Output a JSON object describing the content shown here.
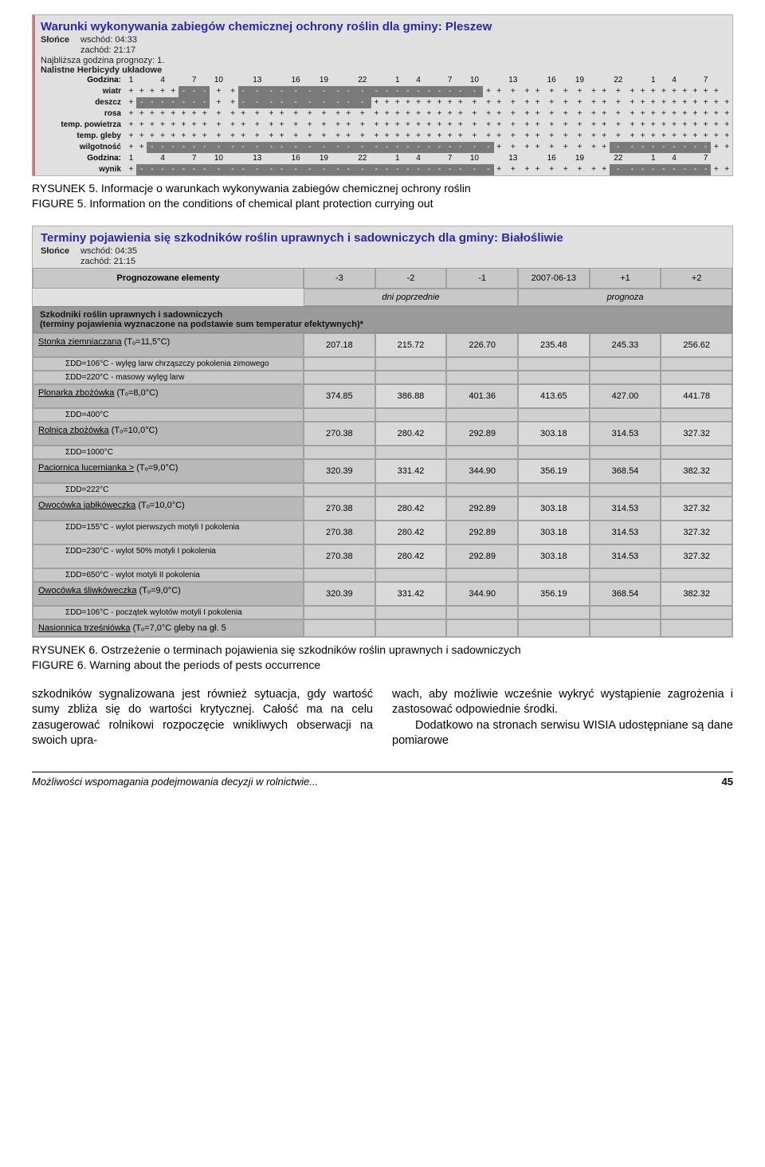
{
  "panel1": {
    "title": "Warunki wykonywania zabiegów chemicznej ochrony roślin dla gminy: Pleszew",
    "sun_label": "Słońce",
    "sunrise": "wschód: 04:33",
    "sunset": "zachód: 21:17",
    "nearest": "Najbliższa godzina prognozy: 1.",
    "herb_line": "Nalistne Herbicydy układowe",
    "hour_label": "Godzina:",
    "hours": [
      "1",
      "4",
      "7",
      "10",
      "13",
      "16",
      "19",
      "22",
      "1",
      "4",
      "7",
      "10",
      "13",
      "16",
      "19",
      "22",
      "1",
      "4",
      "7"
    ],
    "rows": [
      {
        "label": "wiatr",
        "cells": "+ + + + + - - - + + - - - - - - - - - - - - - - - - - - - - + + + + + + + + + + + + + + + + + + + +"
      },
      {
        "label": "deszcz",
        "cells": "+ - - - - - - - + + - - - - - - - - - - + + + + + + + + + + + + + + + + + + + + + + + + + + + + + + +"
      },
      {
        "label": "rosa",
        "cells": "+ + + + + + + + + + + + + + + + + + + + + + + + + + + + + + + + + + + + + + + + + + + + + + + + + + +"
      },
      {
        "label": "temp. powietrza",
        "cells": "+ + + + + + + + + + + + + + + + + + + + + + + + + + + + + + + + + + + + + + + + + + + + + + + + + + +"
      },
      {
        "label": "temp. gleby",
        "cells": "+ + + + + + + + + + + + + + + + + + + + + + + + + + + + + + + + + + + + + + + + + + + + + + + + + + +"
      },
      {
        "label": "wilgotność",
        "cells": "+ + - - - - - - - - - - - - - - - - - - - - - - - - - - - - - + + + + + + + + + - - - - - - - - - + +"
      }
    ],
    "result": {
      "label": "wynik",
      "cells": "+ - - - - - - - - - - - - - - - - - - - - - - - - - - - - - - + + + + + + + + + - - - - - - - - - + +"
    }
  },
  "caption1": {
    "pl": "RYSUNEK 5. Informacje o warunkach wykonywania zabiegów chemicznej ochrony roślin",
    "en": "FIGURE 5. Information on the conditions of chemical plant protection currying out"
  },
  "panel2": {
    "title": "Terminy pojawienia się szkodników roślin uprawnych i sadowniczych dla gminy: Białośliwie",
    "sun_label": "Słońce",
    "sunrise": "wschód: 04:35",
    "sunset": "zachód: 21:15",
    "head_label": "Prognozowane elementy",
    "head_cols": [
      "-3",
      "-2",
      "-1",
      "2007-06-13",
      "+1",
      "+2"
    ],
    "sub_prev": "dni poprzednie",
    "sub_next": "prognoza",
    "section": "Szkodniki roślin uprawnych i sadowniczych\n(terminy pojawienia wyznaczone na podstawie sum temperatur efektywnych)*",
    "pests": [
      {
        "name": "Stonka ziemniaczana",
        "params": "(Tₒ=11,5°C)",
        "extras": [
          "ΣDD=106°C - wylęg larw chrząszczy pokolenia zimowego",
          "ΣDD=220°C - masowy wylęg larw"
        ],
        "rows": [
          [
            207.18,
            215.72,
            226.7,
            235.48,
            245.33,
            256.62
          ]
        ]
      },
      {
        "name": "Plonarka zbożówka",
        "params": "(Tₒ=8,0°C)",
        "extras": [
          "ΣDD=400°C"
        ],
        "rows": [
          [
            374.85,
            386.88,
            401.36,
            413.65,
            427.0,
            441.78
          ]
        ]
      },
      {
        "name": "Rolnica zbożówka",
        "params": "(Tₒ=10,0°C)",
        "extras": [
          "ΣDD=1000°C"
        ],
        "rows": [
          [
            270.38,
            280.42,
            292.89,
            303.18,
            314.53,
            327.32
          ]
        ]
      },
      {
        "name": "Paciornica lucernianka >",
        "params": "(Tₒ=9,0°C)",
        "extras": [
          "ΣDD=222°C"
        ],
        "rows": [
          [
            320.39,
            331.42,
            344.9,
            356.19,
            368.54,
            382.32
          ]
        ]
      },
      {
        "name": "Owocówka jabłkóweczka",
        "params": "(Tₒ=10,0°C)",
        "extras": [
          "ΣDD=155°C - wylot pierwszych motyli I pokolenia",
          "ΣDD=230°C - wylot 50% motyli I pokolenia",
          "ΣDD=650°C - wylot motyli II pokolenia"
        ],
        "rows": [
          [
            270.38,
            280.42,
            292.89,
            303.18,
            314.53,
            327.32
          ],
          [
            270.38,
            280.42,
            292.89,
            303.18,
            314.53,
            327.32
          ],
          [
            270.38,
            280.42,
            292.89,
            303.18,
            314.53,
            327.32
          ]
        ]
      },
      {
        "name": "Owocówka śliwkóweczka",
        "params": "(Tₒ=9,0°C)",
        "extras": [
          "ΣDD=106°C - początek wylotów motyli I pokolenia"
        ],
        "rows": [
          [
            320.39,
            331.42,
            344.9,
            356.19,
            368.54,
            382.32
          ]
        ]
      },
      {
        "name": "Nasionnica trześniówka",
        "params": "(Tₒ=7,0°C gleby na gł. 5",
        "extras": [],
        "rows": []
      }
    ]
  },
  "caption2": {
    "pl": "RYSUNEK 6. Ostrzeżenie o terminach pojawienia się szkodników roślin uprawnych i sadowniczych",
    "en": "FIGURE 6. Warning about the periods of pests occurrence"
  },
  "body": {
    "left": "szkodników sygnalizowana jest również sytuacja, gdy wartość sumy zbliża się do wartości krytycznej. Całość ma na celu zasugerować rolnikowi rozpoczęcie wnikliwych obserwacji na swoich upra-",
    "right_p1": "wach, aby możliwie wcześnie wykryć wystąpienie zagrożenia i zastosować od­powiednie środki.",
    "right_p2": "Dodatkowo na stronach serwisu WISIA udostępniane są dane pomiarowe"
  },
  "footer": {
    "left": "Możliwości wspomagania podejmowania decyzji w rolnictwie...",
    "page": "45"
  },
  "colors": {
    "panel_bg": "#e0e0e0",
    "neg_bg": "#7a7a7a",
    "head_bg": "#c8c8c8",
    "section_bg": "#9a9a9a",
    "cell_bg": "#d0d0d0",
    "title_color": "#2a2aa8"
  }
}
